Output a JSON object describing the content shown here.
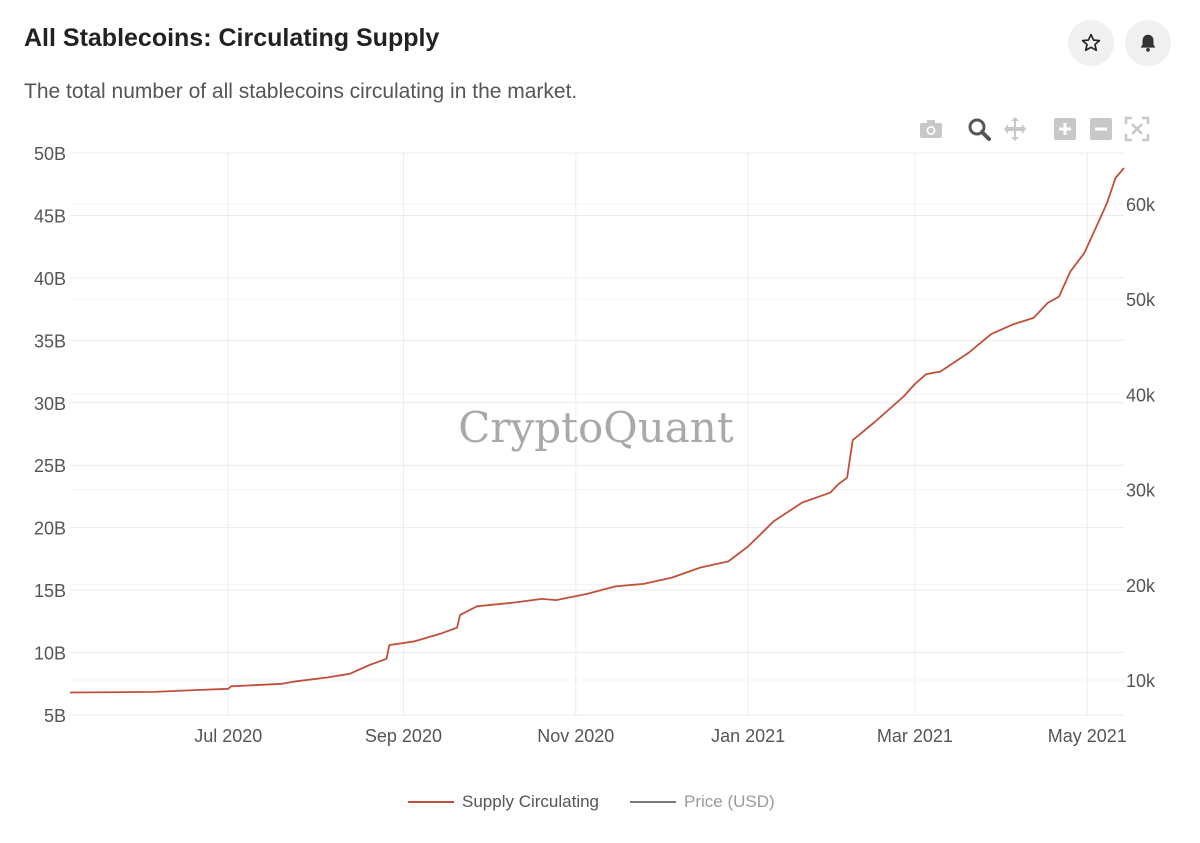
{
  "header": {
    "title": "All Stablecoins: Circulating Supply",
    "subtitle": "The total number of all stablecoins circulating in the market.",
    "star_icon": "star-icon",
    "bell_icon": "bell-icon"
  },
  "toolbar": {
    "icons": [
      "camera-icon",
      "zoom-icon",
      "pan-icon",
      "zoom-in-icon",
      "zoom-out-icon",
      "autoscale-icon"
    ]
  },
  "watermark": "CryptoQuant",
  "colors": {
    "supply": "#c0503a",
    "price": "#7a7a7a",
    "grid": "#ececec",
    "tick": "#555555"
  },
  "chart_data": {
    "type": "line",
    "title": "All Stablecoins: Circulating Supply",
    "x_range": [
      "2020-05-06",
      "2021-05-14"
    ],
    "y_left": {
      "range": [
        5,
        50
      ],
      "ticks": [
        5,
        10,
        15,
        20,
        25,
        30,
        35,
        40,
        45,
        50
      ],
      "tick_labels": [
        "5B",
        "10B",
        "15B",
        "20B",
        "25B",
        "30B",
        "35B",
        "40B",
        "45B",
        "50B"
      ]
    },
    "y_right": {
      "ticks": [
        10000,
        20000,
        30000,
        40000,
        50000,
        60000
      ],
      "tick_labels": [
        "10k",
        "20k",
        "30k",
        "40k",
        "50k",
        "60k"
      ]
    },
    "x_ticks": [
      {
        "date": "2020-07-01",
        "label": "Jul 2020"
      },
      {
        "date": "2020-09-01",
        "label": "Sep 2020"
      },
      {
        "date": "2020-11-01",
        "label": "Nov 2020"
      },
      {
        "date": "2021-01-01",
        "label": "Jan 2021"
      },
      {
        "date": "2021-03-01",
        "label": "Mar 2021"
      },
      {
        "date": "2021-05-01",
        "label": "May 2021"
      }
    ],
    "legend": {
      "position": "bottom-center"
    },
    "grid": true,
    "series": [
      {
        "name": "Supply Circulating",
        "axis": "left",
        "unit": "B",
        "points": [
          [
            "2020-05-06",
            6.8
          ],
          [
            "2020-06-05",
            6.85
          ],
          [
            "2020-06-20",
            7.0
          ],
          [
            "2020-07-01",
            7.1
          ],
          [
            "2020-07-02",
            7.3
          ],
          [
            "2020-07-20",
            7.5
          ],
          [
            "2020-07-25",
            7.7
          ],
          [
            "2020-08-05",
            8.0
          ],
          [
            "2020-08-13",
            8.3
          ],
          [
            "2020-08-20",
            9.0
          ],
          [
            "2020-08-26",
            9.5
          ],
          [
            "2020-08-27",
            10.6
          ],
          [
            "2020-09-05",
            10.9
          ],
          [
            "2020-09-14",
            11.5
          ],
          [
            "2020-09-20",
            12.0
          ],
          [
            "2020-09-21",
            13.0
          ],
          [
            "2020-09-27",
            13.7
          ],
          [
            "2020-10-10",
            14.0
          ],
          [
            "2020-10-20",
            14.3
          ],
          [
            "2020-10-25",
            14.2
          ],
          [
            "2020-11-05",
            14.7
          ],
          [
            "2020-11-15",
            15.3
          ],
          [
            "2020-11-25",
            15.5
          ],
          [
            "2020-12-05",
            16.0
          ],
          [
            "2020-12-15",
            16.8
          ],
          [
            "2020-12-25",
            17.3
          ],
          [
            "2021-01-01",
            18.5
          ],
          [
            "2021-01-10",
            20.5
          ],
          [
            "2021-01-20",
            22.0
          ],
          [
            "2021-01-30",
            22.8
          ],
          [
            "2021-02-02",
            23.5
          ],
          [
            "2021-02-05",
            24.0
          ],
          [
            "2021-02-07",
            27.0
          ],
          [
            "2021-02-15",
            28.5
          ],
          [
            "2021-02-25",
            30.5
          ],
          [
            "2021-03-01",
            31.5
          ],
          [
            "2021-03-05",
            32.3
          ],
          [
            "2021-03-10",
            32.5
          ],
          [
            "2021-03-20",
            34.0
          ],
          [
            "2021-03-28",
            35.5
          ],
          [
            "2021-04-05",
            36.3
          ],
          [
            "2021-04-12",
            36.8
          ],
          [
            "2021-04-17",
            38.0
          ],
          [
            "2021-04-21",
            38.5
          ],
          [
            "2021-04-25",
            40.5
          ],
          [
            "2021-04-30",
            42.0
          ],
          [
            "2021-05-05",
            44.5
          ],
          [
            "2021-05-08",
            46.0
          ],
          [
            "2021-05-11",
            48.0
          ],
          [
            "2021-05-14",
            48.8
          ]
        ]
      },
      {
        "name": "Price (USD)",
        "axis": "right",
        "points": []
      }
    ]
  }
}
